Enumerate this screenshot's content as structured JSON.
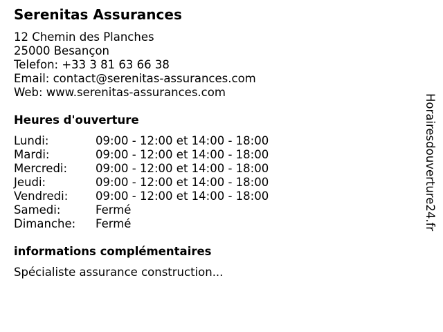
{
  "company": {
    "name": "Serenitas Assurances",
    "street": "12 Chemin des Planches",
    "city": "25000 Besançon",
    "phone": "Telefon: +33 3 81 63 66 38",
    "email": "Email: contact@serenitas-assurances.com",
    "web": "Web: www.serenitas-assurances.com"
  },
  "hours": {
    "heading": "Heures d'ouverture",
    "days": [
      {
        "day": "Lundi:",
        "time": "09:00 - 12:00 et 14:00 - 18:00"
      },
      {
        "day": "Mardi:",
        "time": "09:00 - 12:00 et 14:00 - 18:00"
      },
      {
        "day": "Mercredi:",
        "time": "09:00 - 12:00 et 14:00 - 18:00"
      },
      {
        "day": "Jeudi:",
        "time": "09:00 - 12:00 et 14:00 - 18:00"
      },
      {
        "day": "Vendredi:",
        "time": "09:00 - 12:00 et 14:00 - 18:00"
      },
      {
        "day": "Samedi:",
        "time": "Fermé"
      },
      {
        "day": "Dimanche:",
        "time": "Fermé"
      }
    ]
  },
  "info": {
    "heading": "informations complémentaires",
    "text": "Spécialiste assurance construction..."
  },
  "watermark": "Horairesdouverture24.fr"
}
